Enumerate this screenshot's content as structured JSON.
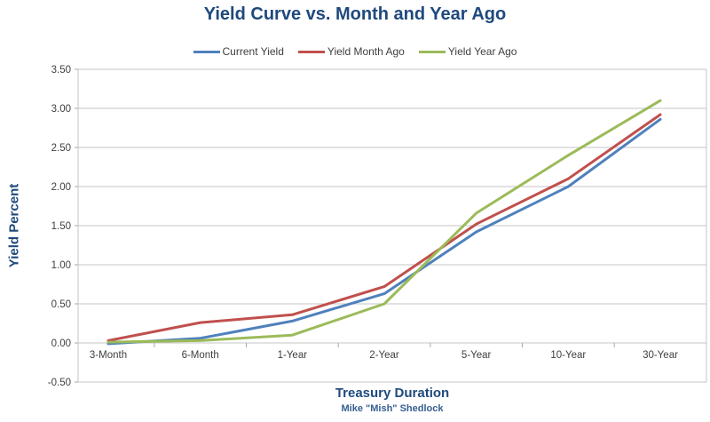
{
  "title": {
    "text": "Yield Curve vs. Month and Year Ago",
    "color": "#1F497D"
  },
  "footer": {
    "credit": "Mike \"Mish\" Shedlock",
    "color": "#365F91"
  },
  "axis_style": {
    "grid_color": "#C6C6C6",
    "tick_color": "#A6A6A6",
    "label_color": "#3F3F3F"
  },
  "chart_data": {
    "type": "line",
    "title": "Yield Curve vs. Month and Year Ago",
    "xlabel": "Treasury Duration",
    "ylabel": "Yield Percent",
    "categories": [
      "3-Month",
      "6-Month",
      "1-Year",
      "2-Year",
      "5-Year",
      "10-Year",
      "30-Year"
    ],
    "series": [
      {
        "name": "Current Yield",
        "color": "#4F81BD",
        "values": [
          -0.01,
          0.06,
          0.28,
          0.63,
          1.42,
          2.0,
          2.86
        ]
      },
      {
        "name": "Yield Month Ago",
        "color": "#C0504D",
        "values": [
          0.03,
          0.26,
          0.36,
          0.72,
          1.52,
          2.1,
          2.92
        ]
      },
      {
        "name": "Yield Year Ago",
        "color": "#9BBB59",
        "values": [
          0.01,
          0.03,
          0.1,
          0.5,
          1.66,
          2.4,
          3.1
        ]
      }
    ],
    "ylim": [
      -0.5,
      3.5
    ],
    "ytick_step": 0.5,
    "y_tick_labels": [
      "3.50",
      "3.00",
      "2.50",
      "2.00",
      "1.50",
      "1.00",
      "0.50",
      "0.00",
      "-0.50"
    ],
    "grid": true,
    "legend_position": "top"
  }
}
